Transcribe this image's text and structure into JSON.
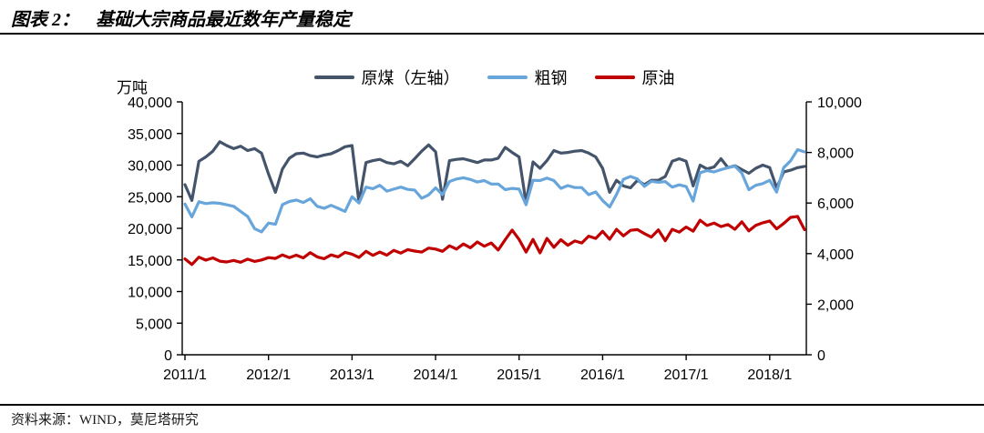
{
  "header": {
    "label": "图表 2：",
    "title": "基础大宗商品最近数年产量稳定"
  },
  "footer": {
    "source": "资料来源：WIND，莫尼塔研究"
  },
  "legend": {
    "items": [
      {
        "label": "原煤（左轴）",
        "color": "#44546A"
      },
      {
        "label": "粗钢",
        "color": "#68A5DB"
      },
      {
        "label": "原油",
        "color": "#C00000"
      }
    ]
  },
  "chart_data": {
    "type": "line",
    "title": "基础大宗商品最近数年产量稳定",
    "unit_label": "万吨",
    "x_start": "2011/1",
    "x_end": "2018/6",
    "x_tick_labels": [
      "2011/1",
      "2012/1",
      "2013/1",
      "2014/1",
      "2015/1",
      "2016/1",
      "2017/1",
      "2018/1"
    ],
    "left_axis": {
      "min": 0,
      "max": 40000,
      "tick_labels": [
        "40,000",
        "35,000",
        "30,000",
        "25,000",
        "20,000",
        "15,000",
        "10,000",
        "5,000",
        "0"
      ]
    },
    "right_axis": {
      "min": 0,
      "max": 10000,
      "tick_labels": [
        "10,000",
        "8,000",
        "6,000",
        "4,000",
        "2,000",
        "0"
      ]
    },
    "grid": false,
    "legend_position": "top",
    "series": [
      {
        "name": "原煤（左轴）",
        "axis": "left",
        "color": "#44546A",
        "values": [
          26900,
          24400,
          30600,
          31300,
          32200,
          33700,
          33100,
          32600,
          33000,
          32300,
          32600,
          31900,
          28600,
          25700,
          29400,
          31100,
          31800,
          31900,
          31500,
          31300,
          31600,
          31800,
          32300,
          32900,
          33100,
          24100,
          30400,
          30700,
          30900,
          30400,
          30200,
          30600,
          29900,
          31000,
          32200,
          33200,
          32100,
          24600,
          30700,
          30900,
          31000,
          30700,
          30400,
          30800,
          30800,
          31100,
          32800,
          32000,
          31300,
          24000,
          30500,
          29500,
          30700,
          32300,
          31900,
          32000,
          32200,
          32300,
          31900,
          31300,
          29500,
          25700,
          27600,
          26700,
          26400,
          27600,
          26900,
          27600,
          27600,
          28200,
          30600,
          31000,
          30600,
          26700,
          30000,
          29400,
          29700,
          31000,
          29600,
          29900,
          29300,
          28700,
          29500,
          30000,
          29600,
          26400,
          28900,
          29200,
          29600,
          29800
        ]
      },
      {
        "name": "粗钢",
        "axis": "right",
        "color": "#68A5DB",
        "values": [
          5960,
          5450,
          6050,
          5980,
          6010,
          5990,
          5930,
          5870,
          5670,
          5470,
          4990,
          4860,
          5210,
          5160,
          5940,
          6060,
          6120,
          6020,
          6170,
          5870,
          5790,
          5910,
          5790,
          5670,
          6250,
          6000,
          6630,
          6570,
          6700,
          6470,
          6550,
          6630,
          6540,
          6510,
          6190,
          6320,
          6600,
          6330,
          6850,
          6950,
          7000,
          6930,
          6830,
          6890,
          6750,
          6750,
          6530,
          6580,
          6550,
          5930,
          6900,
          6890,
          6990,
          6890,
          6580,
          6690,
          6610,
          6610,
          6330,
          6440,
          6100,
          5840,
          6340,
          6940,
          7050,
          6950,
          6660,
          6860,
          6820,
          6850,
          6630,
          6720,
          6650,
          6080,
          7200,
          7280,
          7230,
          7320,
          7400,
          7460,
          7180,
          6530,
          6700,
          6770,
          6900,
          6430,
          7400,
          7670,
          8110,
          8020
        ]
      },
      {
        "name": "原油",
        "axis": "right",
        "color": "#C00000",
        "values": [
          3790,
          3570,
          3860,
          3740,
          3830,
          3700,
          3670,
          3730,
          3660,
          3780,
          3690,
          3750,
          3840,
          3810,
          3950,
          3840,
          3940,
          3830,
          4040,
          3870,
          3800,
          3950,
          3870,
          4050,
          3980,
          3850,
          4090,
          3930,
          4060,
          3940,
          4130,
          4020,
          4160,
          4100,
          4060,
          4220,
          4180,
          4090,
          4310,
          4180,
          4380,
          4230,
          4460,
          4290,
          4420,
          4140,
          4550,
          4930,
          4560,
          4060,
          4560,
          4030,
          4600,
          4250,
          4550,
          4330,
          4500,
          4420,
          4690,
          4600,
          4880,
          4570,
          4960,
          4700,
          4920,
          4950,
          4790,
          4650,
          4940,
          4510,
          4960,
          4850,
          5050,
          4890,
          5320,
          5110,
          5210,
          5070,
          5150,
          4960,
          5260,
          4900,
          5120,
          5220,
          5290,
          4980,
          5190,
          5430,
          5470,
          4950
        ]
      }
    ]
  }
}
